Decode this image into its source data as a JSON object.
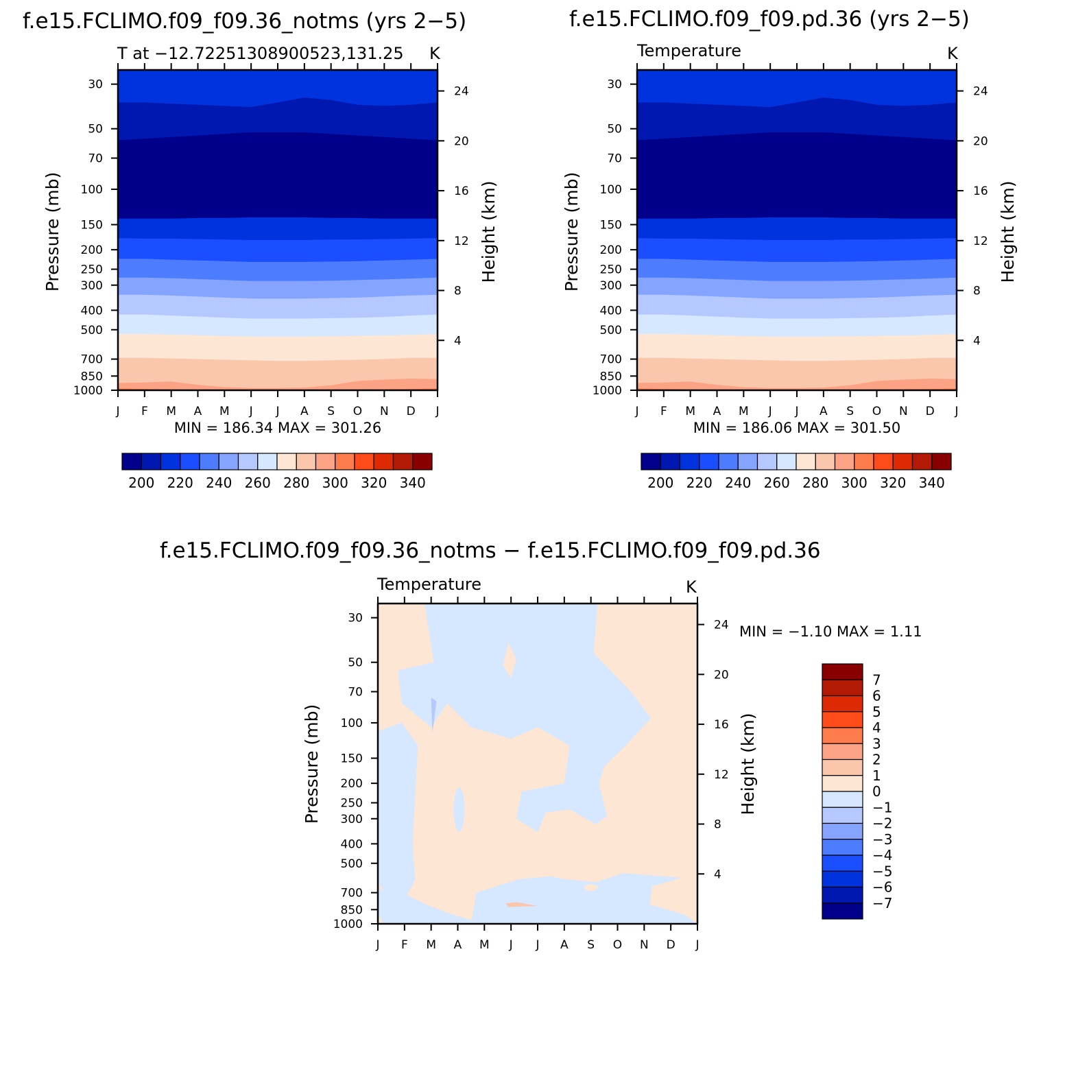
{
  "panels": [
    {
      "title": "f.e15.FCLIMO.f09_f09.36_notms (yrs 2−5)",
      "subtitle": "T at −12.72251308900523,131.25",
      "units": "K",
      "min_max": "MIN  =  186.34  MAX  =  301.26"
    },
    {
      "title": "f.e15.FCLIMO.f09_f09.pd.36 (yrs 2−5)",
      "subtitle": "Temperature",
      "units": "K",
      "min_max": "MIN  =  186.06  MAX  =  301.50"
    },
    {
      "title": "f.e15.FCLIMO.f09_f09.36_notms  −  f.e15.FCLIMO.f09_f09.pd.36",
      "subtitle": "Temperature",
      "units": "K",
      "min_max": "MIN  =    −1.10  MAX  =     1.11"
    }
  ],
  "axes": {
    "ylabel": "Pressure  (mb)",
    "y2label": "Height  (km)",
    "pressure_ticks": [
      "30",
      "50",
      "70",
      "100",
      "150",
      "200",
      "250",
      "300",
      "400",
      "500",
      "700",
      "850",
      "1000"
    ],
    "height_ticks": [
      "24",
      "20",
      "16",
      "12",
      "8",
      "4"
    ],
    "month_ticks": [
      "J",
      "F",
      "M",
      "A",
      "M",
      "J",
      "J",
      "A",
      "S",
      "O",
      "N",
      "D",
      "J"
    ]
  },
  "colorbar_temp": {
    "labels": [
      "200",
      "220",
      "240",
      "260",
      "280",
      "300",
      "320",
      "340"
    ],
    "colors": [
      "#00008a",
      "#0018b0",
      "#0033dd",
      "#1a4eff",
      "#4d7cff",
      "#85a4ff",
      "#b5c8ff",
      "#d5e8ff",
      "#fde6d4",
      "#fbc7ac",
      "#fba384",
      "#ff7c4c",
      "#ff4a1a",
      "#dd2a05",
      "#b31a05",
      "#880000"
    ]
  },
  "colorbar_diff": {
    "labels": [
      "7",
      "6",
      "5",
      "4",
      "3",
      "2",
      "1",
      "0",
      "−1",
      "−2",
      "−3",
      "−4",
      "−5",
      "−6",
      "−7"
    ],
    "colors": [
      "#880000",
      "#b31a05",
      "#dd2a05",
      "#ff4a1a",
      "#ff7c4c",
      "#fba384",
      "#fbc7ac",
      "#fde6d4",
      "#d5e8ff",
      "#b5c8ff",
      "#85a4ff",
      "#4d7cff",
      "#1a4eff",
      "#0033dd",
      "#0018b0",
      "#00008a"
    ]
  },
  "chart_data": [
    {
      "type": "heatmap",
      "title": "f.e15.FCLIMO.f09_f09.36_notms (yrs 2−5)",
      "subtitle": "T at −12.72251308900523,131.25",
      "x": [
        "J",
        "F",
        "M",
        "A",
        "M",
        "J",
        "J",
        "A",
        "S",
        "O",
        "N",
        "D",
        "J"
      ],
      "xlabel": "",
      "ylabel": "Pressure  (mb)",
      "y2label": "Height  (km)",
      "pressure_levels_mb": [
        1000,
        850,
        700,
        500,
        400,
        300,
        250,
        200,
        150,
        100,
        70,
        50,
        30
      ],
      "contour_levels_K": [
        190,
        200,
        210,
        220,
        230,
        240,
        250,
        260,
        270,
        280,
        290,
        300,
        310,
        320,
        330,
        340,
        350
      ],
      "band_boundaries_by_level": [
        {
          "level_K": 290,
          "pressure_mb": [
            920,
            915,
            905,
            940,
            965,
            975,
            975,
            970,
            945,
            900,
            885,
            875,
            880
          ]
        },
        {
          "level_K": 280,
          "pressure_mb": [
            690,
            690,
            695,
            700,
            705,
            710,
            715,
            715,
            710,
            705,
            700,
            690,
            690
          ]
        },
        {
          "level_K": 270,
          "pressure_mb": [
            525,
            525,
            528,
            532,
            537,
            540,
            540,
            540,
            538,
            536,
            534,
            530,
            525
          ]
        },
        {
          "level_K": 260,
          "pressure_mb": [
            420,
            420,
            425,
            430,
            436,
            440,
            440,
            440,
            438,
            436,
            432,
            425,
            420
          ]
        },
        {
          "level_K": 250,
          "pressure_mb": [
            335,
            335,
            338,
            342,
            346,
            350,
            350,
            350,
            348,
            346,
            342,
            338,
            335
          ]
        },
        {
          "level_K": 240,
          "pressure_mb": [
            275,
            275,
            277,
            280,
            283,
            286,
            286,
            286,
            285,
            283,
            281,
            278,
            275
          ]
        },
        {
          "level_K": 230,
          "pressure_mb": [
            222,
            222,
            224,
            226,
            228,
            230,
            230,
            230,
            229,
            228,
            226,
            224,
            222
          ]
        },
        {
          "level_K": 220,
          "pressure_mb": [
            175,
            176,
            176,
            177,
            178,
            179,
            179,
            179,
            178,
            178,
            177,
            176,
            175
          ]
        },
        {
          "level_K": 210,
          "pressure_mb": [
            140,
            140,
            140,
            139,
            139,
            138,
            138,
            138,
            139,
            139,
            140,
            140,
            140
          ]
        },
        {
          "level_K": 200,
          "pressure_mb": [
            57,
            56,
            55,
            54,
            53,
            52,
            52,
            52,
            53,
            54,
            55,
            56,
            57
          ]
        },
        {
          "level_K": 210,
          "pressure_mb": [
            37,
            37,
            37.5,
            38,
            38.5,
            39,
            37,
            35,
            36,
            38,
            38.5,
            38,
            37
          ]
        }
      ],
      "min": 186.34,
      "max": 301.26,
      "units": "K"
    },
    {
      "type": "heatmap",
      "title": "f.e15.FCLIMO.f09_f09.pd.36 (yrs 2−5)",
      "subtitle": "Temperature",
      "x": [
        "J",
        "F",
        "M",
        "A",
        "M",
        "J",
        "J",
        "A",
        "S",
        "O",
        "N",
        "D",
        "J"
      ],
      "xlabel": "",
      "ylabel": "Pressure  (mb)",
      "y2label": "Height  (km)",
      "pressure_levels_mb": [
        1000,
        850,
        700,
        500,
        400,
        300,
        250,
        200,
        150,
        100,
        70,
        50,
        30
      ],
      "contour_levels_K": [
        190,
        200,
        210,
        220,
        230,
        240,
        250,
        260,
        270,
        280,
        290,
        300,
        310,
        320,
        330,
        340,
        350
      ],
      "band_boundaries_by_level": [
        {
          "level_K": 290,
          "pressure_mb": [
            920,
            915,
            905,
            940,
            965,
            975,
            975,
            970,
            945,
            900,
            885,
            875,
            880
          ]
        },
        {
          "level_K": 280,
          "pressure_mb": [
            690,
            690,
            695,
            700,
            705,
            710,
            715,
            715,
            710,
            705,
            700,
            690,
            690
          ]
        },
        {
          "level_K": 270,
          "pressure_mb": [
            525,
            525,
            528,
            532,
            537,
            540,
            540,
            540,
            538,
            536,
            534,
            530,
            525
          ]
        },
        {
          "level_K": 260,
          "pressure_mb": [
            420,
            420,
            425,
            430,
            436,
            440,
            440,
            440,
            438,
            436,
            432,
            425,
            420
          ]
        },
        {
          "level_K": 250,
          "pressure_mb": [
            335,
            335,
            338,
            342,
            346,
            350,
            350,
            350,
            348,
            346,
            342,
            338,
            335
          ]
        },
        {
          "level_K": 240,
          "pressure_mb": [
            275,
            275,
            277,
            280,
            283,
            286,
            286,
            286,
            285,
            283,
            281,
            278,
            275
          ]
        },
        {
          "level_K": 230,
          "pressure_mb": [
            222,
            222,
            224,
            226,
            228,
            230,
            230,
            230,
            229,
            228,
            226,
            224,
            222
          ]
        },
        {
          "level_K": 220,
          "pressure_mb": [
            175,
            176,
            176,
            177,
            178,
            179,
            179,
            179,
            178,
            178,
            177,
            176,
            175
          ]
        },
        {
          "level_K": 210,
          "pressure_mb": [
            140,
            140,
            140,
            139,
            139,
            138,
            138,
            138,
            139,
            139,
            140,
            140,
            140
          ]
        },
        {
          "level_K": 200,
          "pressure_mb": [
            57,
            56,
            55,
            54,
            53,
            52,
            52,
            52,
            53,
            54,
            55,
            56,
            57
          ]
        },
        {
          "level_K": 210,
          "pressure_mb": [
            37,
            37,
            37.5,
            38,
            38.5,
            39,
            37,
            35,
            36,
            38,
            38.5,
            38,
            37
          ]
        }
      ],
      "min": 186.06,
      "max": 301.5,
      "units": "K"
    },
    {
      "type": "heatmap",
      "title": "f.e15.FCLIMO.f09_f09.36_notms  −  f.e15.FCLIMO.f09_f09.pd.36",
      "subtitle": "Temperature",
      "x": [
        "J",
        "F",
        "M",
        "A",
        "M",
        "J",
        "J",
        "A",
        "S",
        "O",
        "N",
        "D",
        "J"
      ],
      "xlabel": "",
      "ylabel": "Pressure  (mb)",
      "y2label": "Height  (km)",
      "pressure_levels_mb": [
        1000,
        850,
        700,
        500,
        400,
        300,
        250,
        200,
        150,
        100,
        70,
        50,
        30
      ],
      "contour_levels_K": [
        -7,
        -6,
        -5,
        -4,
        -3,
        -2,
        -1,
        0,
        1,
        2,
        3,
        4,
        5,
        6,
        7
      ],
      "sign_regions": "mostly 0..1 (positive) near 30 mb Jan-Feb and Nov-Dec, and 100-600 mb Mar-Sep; mostly -1..0 (negative) 30-150 mb Feb-Oct and near 700-1000 mb",
      "min": -1.1,
      "max": 1.11,
      "units": "K"
    }
  ]
}
